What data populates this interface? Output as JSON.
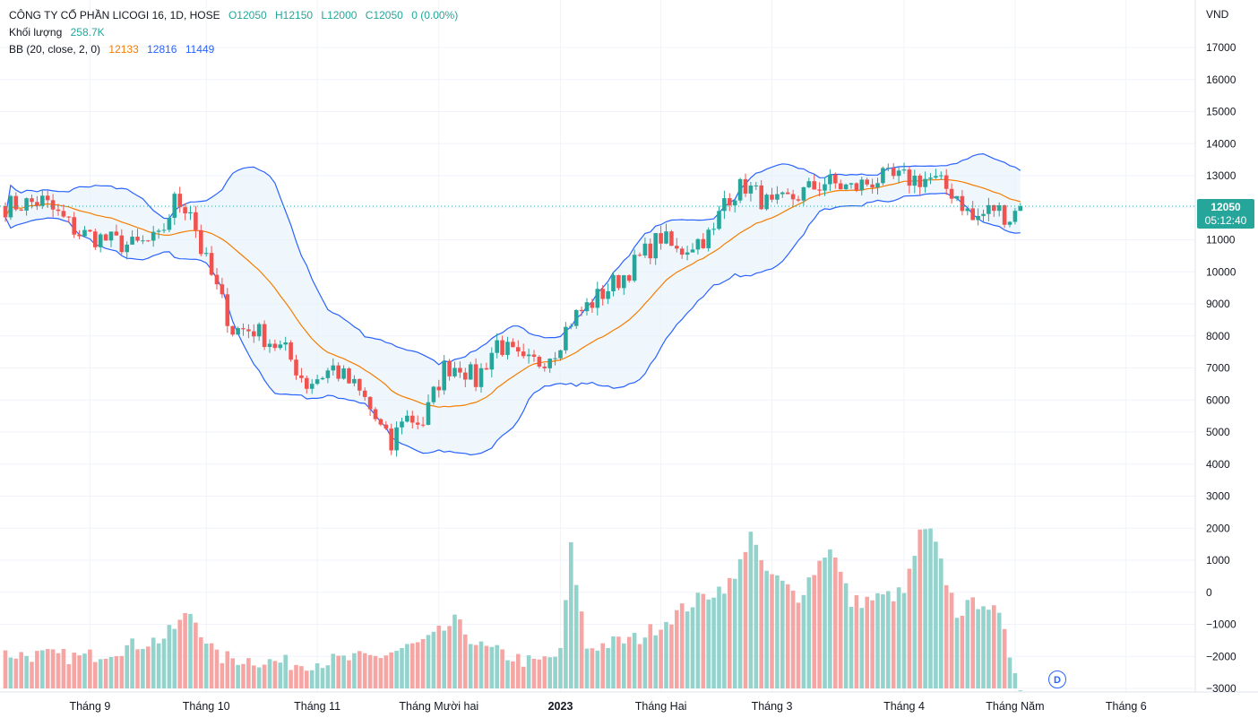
{
  "legend": {
    "title": "CÔNG TY CỔ PHẦN LICOGI 16, 1D, HOSE",
    "open": "O12050",
    "high": "H12150",
    "low": "L12000",
    "close": "C12050",
    "change": "0 (0.00%)",
    "volume_label": "Khối lượng",
    "volume_value": "258.7K",
    "bb_label": "BB (20, close, 2, 0)",
    "bb_basis": "12133",
    "bb_upper": "12816",
    "bb_lower": "11449"
  },
  "price_tag": {
    "price": "12050",
    "countdown": "05:12:40"
  },
  "badge": "D",
  "colors": {
    "up": "#26a69a",
    "down": "#ef5350",
    "bb_basis": "#f57c00",
    "bb_band": "#2962ff",
    "bb_fill": "#e3f0fa",
    "vol_up": "#93d3cc",
    "vol_down": "#f5a6a4"
  },
  "chart_data": {
    "type": "candlestick",
    "currency_label": "VND",
    "y_ticks": [
      "17000",
      "16000",
      "15000",
      "14000",
      "13000",
      "12000",
      "11000",
      "10000",
      "9000",
      "8000",
      "7000",
      "6000",
      "5000",
      "4000",
      "3000",
      "2000",
      "1000",
      "0",
      "−1000",
      "−2000",
      "−3000"
    ],
    "y_tick_values": [
      17000,
      16000,
      15000,
      14000,
      13000,
      12000,
      11000,
      10000,
      9000,
      8000,
      7000,
      6000,
      5000,
      4000,
      3000,
      2000,
      1000,
      0,
      -1000,
      -2000,
      -3000
    ],
    "x_ticks": [
      {
        "label": "Tháng 9",
        "day": 16,
        "bold": false
      },
      {
        "label": "Tháng 10",
        "day": 38,
        "bold": false
      },
      {
        "label": "Tháng 11",
        "day": 59,
        "bold": false
      },
      {
        "label": "Tháng Mười hai",
        "day": 82,
        "bold": false
      },
      {
        "label": "2023",
        "day": 105,
        "bold": true
      },
      {
        "label": "Tháng Hai",
        "day": 124,
        "bold": false
      },
      {
        "label": "Tháng 3",
        "day": 145,
        "bold": false
      },
      {
        "label": "Tháng 4",
        "day": 170,
        "bold": false
      },
      {
        "label": "Tháng Năm",
        "day": 191,
        "bold": false
      },
      {
        "label": "Tháng 6",
        "day": 212,
        "bold": false
      }
    ],
    "last_price": 12050,
    "price_path": [
      [
        0,
        12050
      ],
      [
        7,
        12200
      ],
      [
        14,
        11200
      ],
      [
        24,
        10800
      ],
      [
        29,
        11000
      ],
      [
        32,
        12200
      ],
      [
        35,
        12000
      ],
      [
        37,
        10700
      ],
      [
        43,
        8200
      ],
      [
        47,
        8200
      ],
      [
        53,
        7500
      ],
      [
        57,
        6500
      ],
      [
        62,
        7000
      ],
      [
        66,
        6400
      ],
      [
        68,
        6000
      ],
      [
        73,
        4500
      ],
      [
        75,
        5500
      ],
      [
        79,
        5300
      ],
      [
        83,
        7000
      ],
      [
        86,
        7100
      ],
      [
        89,
        6600
      ],
      [
        93,
        7800
      ],
      [
        98,
        7100
      ],
      [
        101,
        7200
      ],
      [
        104,
        7600
      ],
      [
        107,
        8500
      ],
      [
        117,
        9900
      ],
      [
        124,
        11100
      ],
      [
        127,
        10600
      ],
      [
        130,
        10900
      ],
      [
        134,
        11200
      ],
      [
        136,
        12300
      ],
      [
        140,
        12700
      ],
      [
        145,
        12000
      ],
      [
        150,
        12400
      ],
      [
        155,
        12800
      ],
      [
        160,
        12600
      ],
      [
        165,
        12900
      ],
      [
        170,
        12900
      ],
      [
        175,
        12900
      ],
      [
        180,
        12400
      ],
      [
        183,
        11600
      ],
      [
        187,
        12000
      ],
      [
        190,
        11700
      ],
      [
        192,
        12050
      ]
    ],
    "volume_path": [
      [
        0,
        -2000
      ],
      [
        15,
        -2100
      ],
      [
        30,
        -1500
      ],
      [
        35,
        -700
      ],
      [
        40,
        -2100
      ],
      [
        55,
        -2300
      ],
      [
        70,
        -2100
      ],
      [
        80,
        -1600
      ],
      [
        85,
        -1000
      ],
      [
        90,
        -1800
      ],
      [
        100,
        -2300
      ],
      [
        105,
        -2000
      ],
      [
        107,
        1300
      ],
      [
        110,
        -1800
      ],
      [
        120,
        -1500
      ],
      [
        130,
        -400
      ],
      [
        138,
        300
      ],
      [
        141,
        1900
      ],
      [
        143,
        700
      ],
      [
        150,
        -200
      ],
      [
        156,
        1400
      ],
      [
        160,
        -400
      ],
      [
        170,
        -100
      ],
      [
        173,
        1700
      ],
      [
        175,
        1800
      ],
      [
        180,
        -700
      ],
      [
        185,
        -300
      ],
      [
        188,
        -900
      ],
      [
        190,
        -2000
      ],
      [
        192,
        -2900
      ]
    ]
  }
}
